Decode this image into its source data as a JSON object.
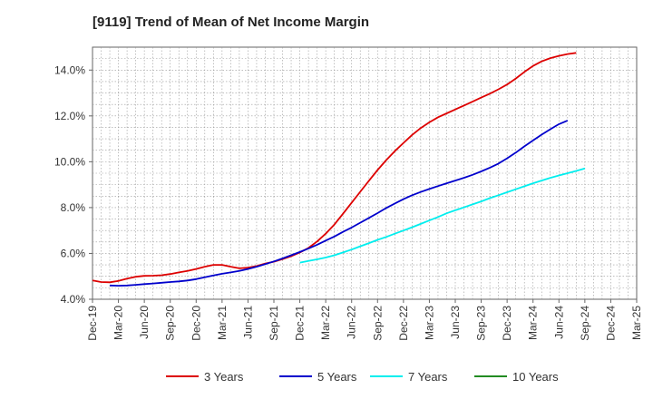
{
  "chart_data": {
    "type": "line",
    "title": "[9119]  Trend of Mean of Net Income Margin",
    "xlabel": "",
    "ylabel": "",
    "x_ticks": [
      "Dec-19",
      "Mar-20",
      "Jun-20",
      "Sep-20",
      "Dec-20",
      "Mar-21",
      "Jun-21",
      "Sep-21",
      "Dec-21",
      "Mar-22",
      "Jun-22",
      "Sep-22",
      "Dec-22",
      "Mar-23",
      "Jun-23",
      "Sep-23",
      "Dec-23",
      "Mar-24",
      "Jun-24",
      "Sep-24",
      "Dec-24",
      "Mar-25"
    ],
    "y_ticks": [
      "4.0%",
      "6.0%",
      "8.0%",
      "10.0%",
      "12.0%",
      "14.0%"
    ],
    "ylim": [
      4.0,
      15.0
    ],
    "grid": true,
    "legend_position": "bottom",
    "series": [
      {
        "name": "3 Years",
        "color": "#dd0000",
        "start_index": 0,
        "values": [
          4.82,
          4.75,
          4.74,
          4.8,
          4.9,
          4.98,
          5.02,
          5.03,
          5.05,
          5.1,
          5.17,
          5.24,
          5.32,
          5.42,
          5.5,
          5.5,
          5.42,
          5.35,
          5.38,
          5.45,
          5.56,
          5.64,
          5.75,
          5.88,
          6.04,
          6.24,
          6.52,
          6.86,
          7.26,
          7.73,
          8.21,
          8.69,
          9.17,
          9.64,
          10.07,
          10.46,
          10.82,
          11.17,
          11.47,
          11.72,
          11.94,
          12.11,
          12.28,
          12.45,
          12.62,
          12.8,
          12.97,
          13.16,
          13.37,
          13.63,
          13.92,
          14.18,
          14.38,
          14.52,
          14.62,
          14.7,
          14.75
        ]
      },
      {
        "name": "5 Years",
        "color": "#0000cc",
        "start_index": 2,
        "values": [
          4.6,
          4.59,
          4.6,
          4.63,
          4.66,
          4.69,
          4.72,
          4.75,
          4.78,
          4.82,
          4.88,
          4.96,
          5.04,
          5.11,
          5.17,
          5.24,
          5.32,
          5.42,
          5.53,
          5.65,
          5.78,
          5.92,
          6.06,
          6.21,
          6.38,
          6.56,
          6.74,
          6.94,
          7.13,
          7.34,
          7.55,
          7.76,
          7.98,
          8.18,
          8.37,
          8.54,
          8.68,
          8.81,
          8.94,
          9.06,
          9.18,
          9.3,
          9.43,
          9.58,
          9.74,
          9.92,
          10.15,
          10.4,
          10.67,
          10.93,
          11.18,
          11.42,
          11.64,
          11.8
        ]
      },
      {
        "name": "7 Years",
        "color": "#00eeee",
        "start_index": 24,
        "values": [
          5.6,
          5.67,
          5.74,
          5.82,
          5.92,
          6.04,
          6.17,
          6.31,
          6.45,
          6.59,
          6.72,
          6.86,
          7.0,
          7.14,
          7.29,
          7.44,
          7.59,
          7.75,
          7.88,
          8.01,
          8.14,
          8.27,
          8.41,
          8.54,
          8.67,
          8.8,
          8.93,
          9.06,
          9.18,
          9.3,
          9.4,
          9.5,
          9.6,
          9.71
        ]
      },
      {
        "name": "10 Years",
        "color": "#228b22",
        "start_index": 0,
        "values": []
      }
    ]
  }
}
